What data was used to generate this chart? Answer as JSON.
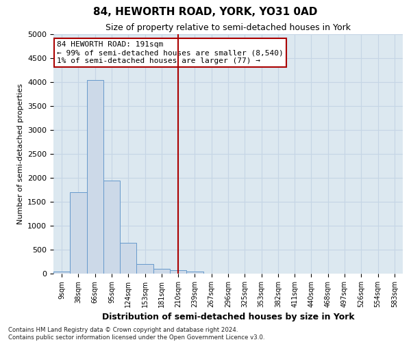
{
  "title": "84, HEWORTH ROAD, YORK, YO31 0AD",
  "subtitle": "Size of property relative to semi-detached houses in York",
  "xlabel": "Distribution of semi-detached houses by size in York",
  "ylabel": "Number of semi-detached properties",
  "bin_labels": [
    "9sqm",
    "38sqm",
    "66sqm",
    "95sqm",
    "124sqm",
    "153sqm",
    "181sqm",
    "210sqm",
    "239sqm",
    "267sqm",
    "296sqm",
    "325sqm",
    "353sqm",
    "382sqm",
    "411sqm",
    "440sqm",
    "468sqm",
    "497sqm",
    "526sqm",
    "554sqm",
    "583sqm"
  ],
  "bar_heights": [
    45,
    1700,
    4050,
    1950,
    650,
    200,
    100,
    75,
    40,
    5,
    3,
    2,
    1,
    1,
    0,
    0,
    0,
    0,
    0,
    0,
    0
  ],
  "bar_color": "#ccd9e8",
  "bar_edge_color": "#6699cc",
  "property_line_x": 7.0,
  "annotation_line1": "84 HEWORTH ROAD: 191sqm",
  "annotation_line2": "← 99% of semi-detached houses are smaller (8,540)",
  "annotation_line3": "1% of semi-detached houses are larger (77) →",
  "vline_color": "#aa0000",
  "ylim": [
    0,
    5000
  ],
  "yticks": [
    0,
    500,
    1000,
    1500,
    2000,
    2500,
    3000,
    3500,
    4000,
    4500,
    5000
  ],
  "grid_color": "#c5d5e5",
  "background_color": "#dce8f0",
  "footer_line1": "Contains HM Land Registry data © Crown copyright and database right 2024.",
  "footer_line2": "Contains public sector information licensed under the Open Government Licence v3.0."
}
